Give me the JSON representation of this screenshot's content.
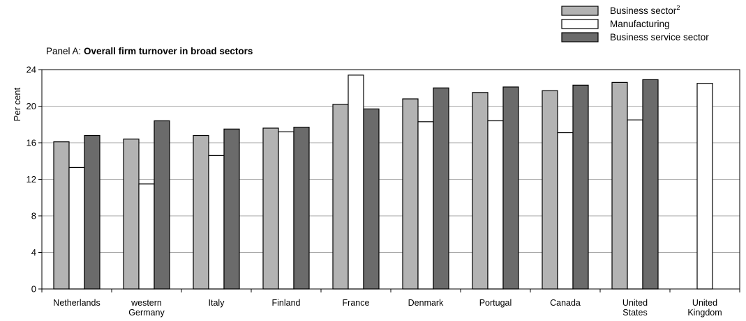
{
  "chart_data": {
    "type": "bar",
    "panel_prefix": "Panel A: ",
    "title": "Overall firm turnover in broad sectors",
    "ylabel": "Per cent",
    "ylim": [
      0,
      24
    ],
    "yticks": [
      "0",
      "4",
      "8",
      "12",
      "16",
      "20",
      "24"
    ],
    "grid": true,
    "legend_position": "top-right",
    "categories": [
      [
        "Netherlands"
      ],
      [
        "western",
        "Germany"
      ],
      [
        "Italy"
      ],
      [
        "Finland"
      ],
      [
        "France"
      ],
      [
        "Denmark"
      ],
      [
        "Portugal"
      ],
      [
        "Canada"
      ],
      [
        "United",
        "States"
      ],
      [
        "United",
        "Kingdom"
      ]
    ],
    "series": [
      {
        "name": "Business sector",
        "name_sup": "2",
        "color": "#b3b3b3",
        "values": [
          16.1,
          16.4,
          16.8,
          17.6,
          20.2,
          20.8,
          21.5,
          21.7,
          22.6,
          null
        ]
      },
      {
        "name": "Manufacturing",
        "color": "#ffffff",
        "values": [
          13.3,
          11.5,
          14.6,
          17.2,
          23.4,
          18.3,
          18.4,
          17.1,
          18.5,
          22.5
        ]
      },
      {
        "name": "Business service sector",
        "color": "#6b6b6b",
        "values": [
          16.8,
          18.4,
          17.5,
          17.7,
          19.7,
          22.0,
          22.1,
          22.3,
          22.9,
          null
        ]
      }
    ]
  }
}
